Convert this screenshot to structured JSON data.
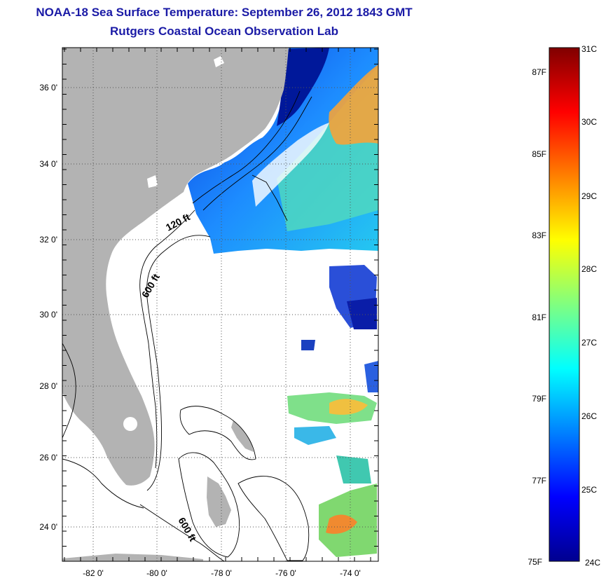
{
  "title": "NOAA-18 Sea Surface Temperature:  September 26, 2012 1843 GMT",
  "subtitle": "Rutgers Coastal Ocean Observation Lab",
  "axes": {
    "lat_ticks": [
      "36 0'",
      "34 0'",
      "32 0'",
      "30 0'",
      "28 0'",
      "26 0'",
      "24 0'"
    ],
    "lon_ticks": [
      "-82 0'",
      "-80 0'",
      "-78 0'",
      "-76 0'",
      "-74 0'"
    ]
  },
  "contour_labels": [
    "120 ft",
    "600 ft",
    "600 ft"
  ],
  "colorbar": {
    "celsius_labels": [
      "31C",
      "30C",
      "29C",
      "28C",
      "27C",
      "26C",
      "25C",
      "24C"
    ],
    "fahrenheit_labels": [
      "87F",
      "85F",
      "83F",
      "81F",
      "79F",
      "77F",
      "75F"
    ],
    "colors": [
      "#00008f",
      "#0000ff",
      "#0080ff",
      "#00ffff",
      "#80ff80",
      "#ffff00",
      "#ff8000",
      "#ff0000",
      "#800000"
    ]
  },
  "colors": {
    "land": "#b3b3b3",
    "title": "#1a1aa6"
  }
}
